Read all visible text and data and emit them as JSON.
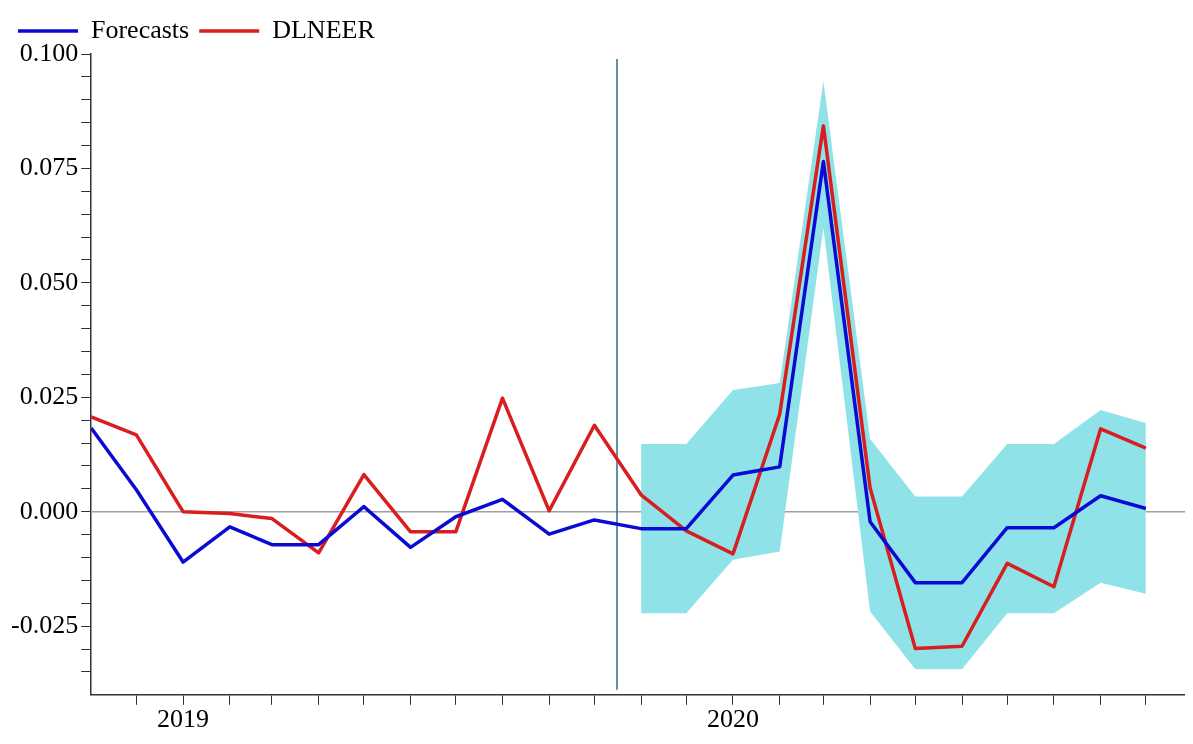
{
  "chart_data": {
    "type": "line",
    "x": [
      "2018-11",
      "2018-12",
      "2019-01",
      "2019-02",
      "2019-03",
      "2019-04",
      "2019-05",
      "2019-06",
      "2019-07",
      "2019-08",
      "2019-09",
      "2019-10",
      "2019-11",
      "2019-12",
      "2020-01",
      "2020-02",
      "2020-03",
      "2020-04",
      "2020-05",
      "2020-06",
      "2020-07",
      "2020-08",
      "2020-09",
      "2020-10"
    ],
    "series": [
      {
        "name": "Forecasts",
        "color": "#0a0ad2",
        "values": [
          0.0183,
          0.0048,
          -0.011,
          -0.0033,
          -0.0072,
          -0.0072,
          0.0011,
          -0.0078,
          -0.0011,
          0.0027,
          -0.0049,
          -0.0018,
          -0.0037,
          -0.0037,
          0.008,
          0.0098,
          0.0765,
          -0.0022,
          -0.0155,
          -0.0155,
          -0.0035,
          -0.0035,
          0.0035,
          0.0007
        ],
        "lower": [
          null,
          null,
          null,
          null,
          null,
          null,
          null,
          null,
          null,
          null,
          null,
          null,
          -0.0222,
          -0.0222,
          -0.0105,
          -0.0087,
          0.062,
          -0.0218,
          -0.0344,
          -0.0344,
          -0.0222,
          -0.0222,
          -0.0155,
          -0.0179
        ],
        "upper": [
          null,
          null,
          null,
          null,
          null,
          null,
          null,
          null,
          null,
          null,
          null,
          null,
          0.0148,
          0.0148,
          0.0266,
          0.0281,
          0.0941,
          0.0159,
          0.0033,
          0.0033,
          0.0148,
          0.0148,
          0.0222,
          0.0194
        ]
      },
      {
        "name": "DLNEER",
        "color": "#d81e1e",
        "values": [
          0.0207,
          0.0168,
          0.0,
          -0.0004,
          -0.0015,
          -0.009,
          0.0081,
          -0.0044,
          -0.0044,
          0.0248,
          0.0002,
          0.0189,
          0.0037,
          -0.0042,
          -0.0092,
          0.0213,
          0.0843,
          0.0052,
          -0.0299,
          -0.0294,
          -0.0113,
          -0.0164,
          0.0181,
          0.0139
        ]
      }
    ],
    "xlim": [
      "2018-11",
      "2020-10-27"
    ],
    "xticks": [
      {
        "value": "2018-12",
        "label": null
      },
      {
        "value": "2019",
        "label": "2019"
      },
      {
        "value": "2019-02",
        "label": null
      },
      {
        "value": "2019-03",
        "label": null
      },
      {
        "value": "2019-04",
        "label": null
      },
      {
        "value": "2019-05",
        "label": null
      },
      {
        "value": "2019-06",
        "label": null
      },
      {
        "value": "2019-07",
        "label": null
      },
      {
        "value": "2019-08",
        "label": null
      },
      {
        "value": "2019-09",
        "label": null
      },
      {
        "value": "2019-10",
        "label": null
      },
      {
        "value": "2019-11",
        "label": null
      },
      {
        "value": "2019-12",
        "label": null
      },
      {
        "value": "2020",
        "label": "2020"
      },
      {
        "value": "2020-02",
        "label": null
      },
      {
        "value": "2020-03",
        "label": null
      },
      {
        "value": "2020-04",
        "label": null
      },
      {
        "value": "2020-05",
        "label": null
      },
      {
        "value": "2020-06",
        "label": null
      },
      {
        "value": "2020-07",
        "label": null
      },
      {
        "value": "2020-08",
        "label": null
      },
      {
        "value": "2020-09",
        "label": null
      },
      {
        "value": "2020-10",
        "label": null
      }
    ],
    "ylim": [
      -0.04,
      0.1
    ],
    "yticks": [
      {
        "value": -0.035,
        "label": null
      },
      {
        "value": -0.03,
        "label": null
      },
      {
        "value": -0.025,
        "label": "-0.025"
      },
      {
        "value": -0.02,
        "label": null
      },
      {
        "value": -0.015,
        "label": null
      },
      {
        "value": -0.01,
        "label": null
      },
      {
        "value": -0.005,
        "label": null
      },
      {
        "value": 0,
        "label": "0.000"
      },
      {
        "value": 0.005,
        "label": null
      },
      {
        "value": 0.01,
        "label": null
      },
      {
        "value": 0.015,
        "label": null
      },
      {
        "value": 0.02,
        "label": null
      },
      {
        "value": 0.025,
        "label": "0.025"
      },
      {
        "value": 0.03,
        "label": null
      },
      {
        "value": 0.035,
        "label": null
      },
      {
        "value": 0.04,
        "label": null
      },
      {
        "value": 0.045,
        "label": null
      },
      {
        "value": 0.05,
        "label": "0.050"
      },
      {
        "value": 0.055,
        "label": null
      },
      {
        "value": 0.06,
        "label": null
      },
      {
        "value": 0.065,
        "label": null
      },
      {
        "value": 0.07,
        "label": null
      },
      {
        "value": 0.075,
        "label": "0.075"
      },
      {
        "value": 0.08,
        "label": null
      },
      {
        "value": 0.085,
        "label": null
      },
      {
        "value": 0.09,
        "label": null
      },
      {
        "value": 0.095,
        "label": null
      },
      {
        "value": 0.1,
        "label": "0.100"
      }
    ],
    "ref_lines": [
      {
        "axis": "y",
        "value": 0,
        "color": "#a0a0a0"
      },
      {
        "axis": "x",
        "value": "2019-10-16",
        "color": "#2f6f80"
      }
    ],
    "legend": "top left",
    "grid": false,
    "marker": "none",
    "line_style": "solid"
  }
}
